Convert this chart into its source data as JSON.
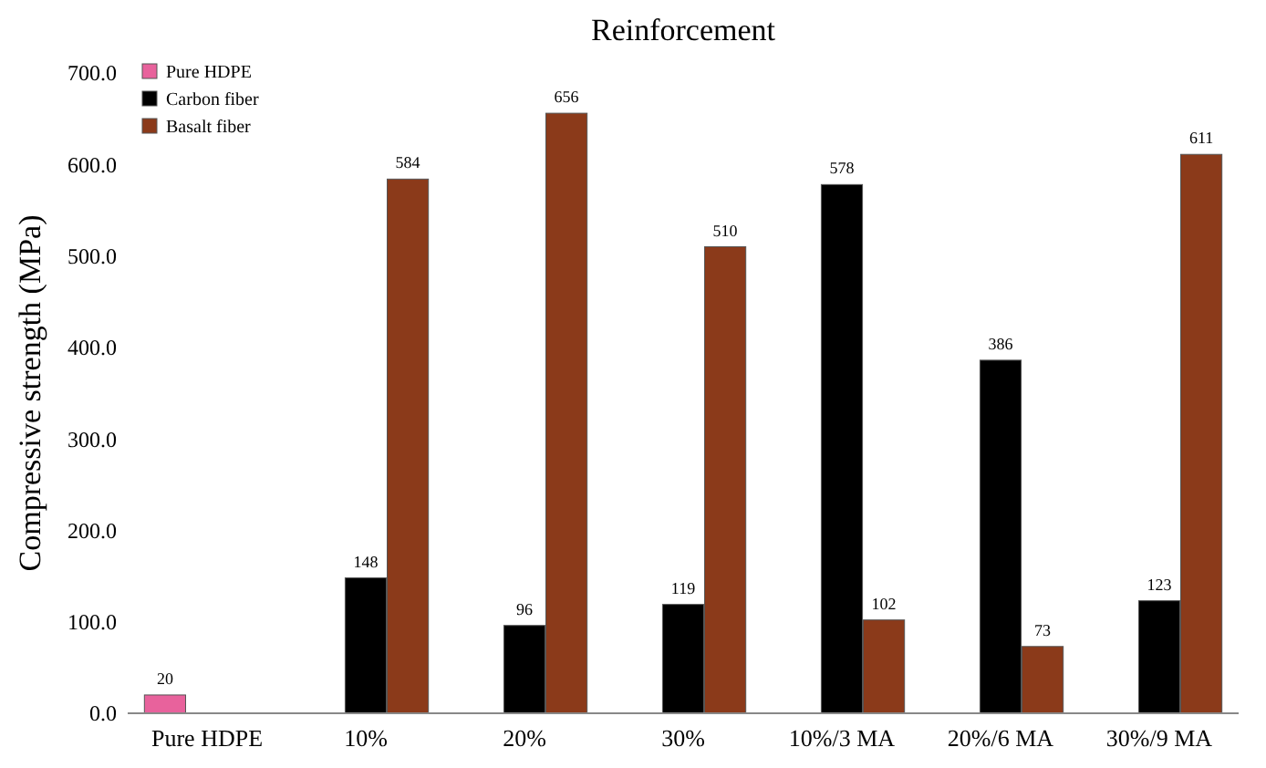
{
  "chart_data": {
    "type": "bar",
    "title": "Reinforcement",
    "ylabel": "Compressive strength (MPa)",
    "categories": [
      "Pure HDPE",
      "10%",
      "20%",
      "30%",
      "10%/3 MA",
      "20%/6 MA",
      "30%/9 MA"
    ],
    "series": [
      {
        "name": "Pure HDPE",
        "color": "#e8629c",
        "values": [
          20,
          null,
          null,
          null,
          null,
          null,
          null
        ]
      },
      {
        "name": "Carbon fiber",
        "color": "#000000",
        "values": [
          null,
          148,
          96,
          119,
          578,
          386,
          123
        ]
      },
      {
        "name": "Basalt fiber",
        "color": "#8b3a1a",
        "values": [
          null,
          584,
          656,
          510,
          102,
          73,
          611
        ]
      }
    ],
    "ylim": [
      0,
      700
    ],
    "yticks": [
      {
        "value": 0,
        "label": "0.0"
      },
      {
        "value": 100,
        "label": "100.0"
      },
      {
        "value": 200,
        "label": "200.0"
      },
      {
        "value": 300,
        "label": "300.0"
      },
      {
        "value": 400,
        "label": "400.0"
      },
      {
        "value": 500,
        "label": "500.0"
      },
      {
        "value": 600,
        "label": "600.0"
      },
      {
        "value": 700,
        "label": "700.0"
      }
    ],
    "legend": "top left",
    "data_labels": true
  }
}
